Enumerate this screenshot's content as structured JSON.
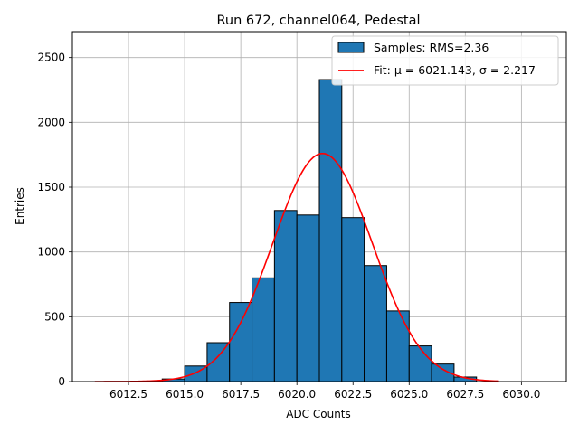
{
  "chart_data": {
    "type": "bar",
    "title": "Run 672, channel064, Pedestal",
    "xlabel": "ADC Counts",
    "ylabel": "Entries",
    "xlim": [
      6010.0,
      6032.0
    ],
    "ylim": [
      0,
      2700
    ],
    "xticks": [
      6012.5,
      6015.0,
      6017.5,
      6020.0,
      6022.5,
      6025.0,
      6027.5,
      6030.0
    ],
    "xtick_labels": [
      "6012.5",
      "6015.0",
      "6017.5",
      "6020.0",
      "6022.5",
      "6025.0",
      "6027.5",
      "6030.0"
    ],
    "yticks": [
      0,
      500,
      1000,
      1500,
      2000,
      2500
    ],
    "ytick_labels": [
      "0",
      "500",
      "1000",
      "1500",
      "2000",
      "2500"
    ],
    "grid": true,
    "legend_position": "top-right",
    "histogram": {
      "name": "Samples: RMS=2.36",
      "color": "#1f77b4",
      "bin_edges": [
        6014,
        6015,
        6016,
        6017,
        6018,
        6019,
        6020,
        6021,
        6022,
        6023,
        6024,
        6025,
        6026,
        6027,
        6028
      ],
      "counts": [
        20,
        120,
        300,
        610,
        800,
        1320,
        1285,
        2330,
        1265,
        895,
        545,
        275,
        135,
        35
      ]
    },
    "fit": {
      "name": "Fit: μ = 6021.143, σ = 2.217",
      "label_prefix": "Fit: ",
      "mu_label": "μ = 6021.143",
      "sigma_label": "σ = 2.217",
      "color": "#ff0000",
      "mu": 6021.143,
      "sigma": 2.217,
      "amplitude": 1760,
      "x_range": [
        6011,
        6029
      ]
    }
  }
}
